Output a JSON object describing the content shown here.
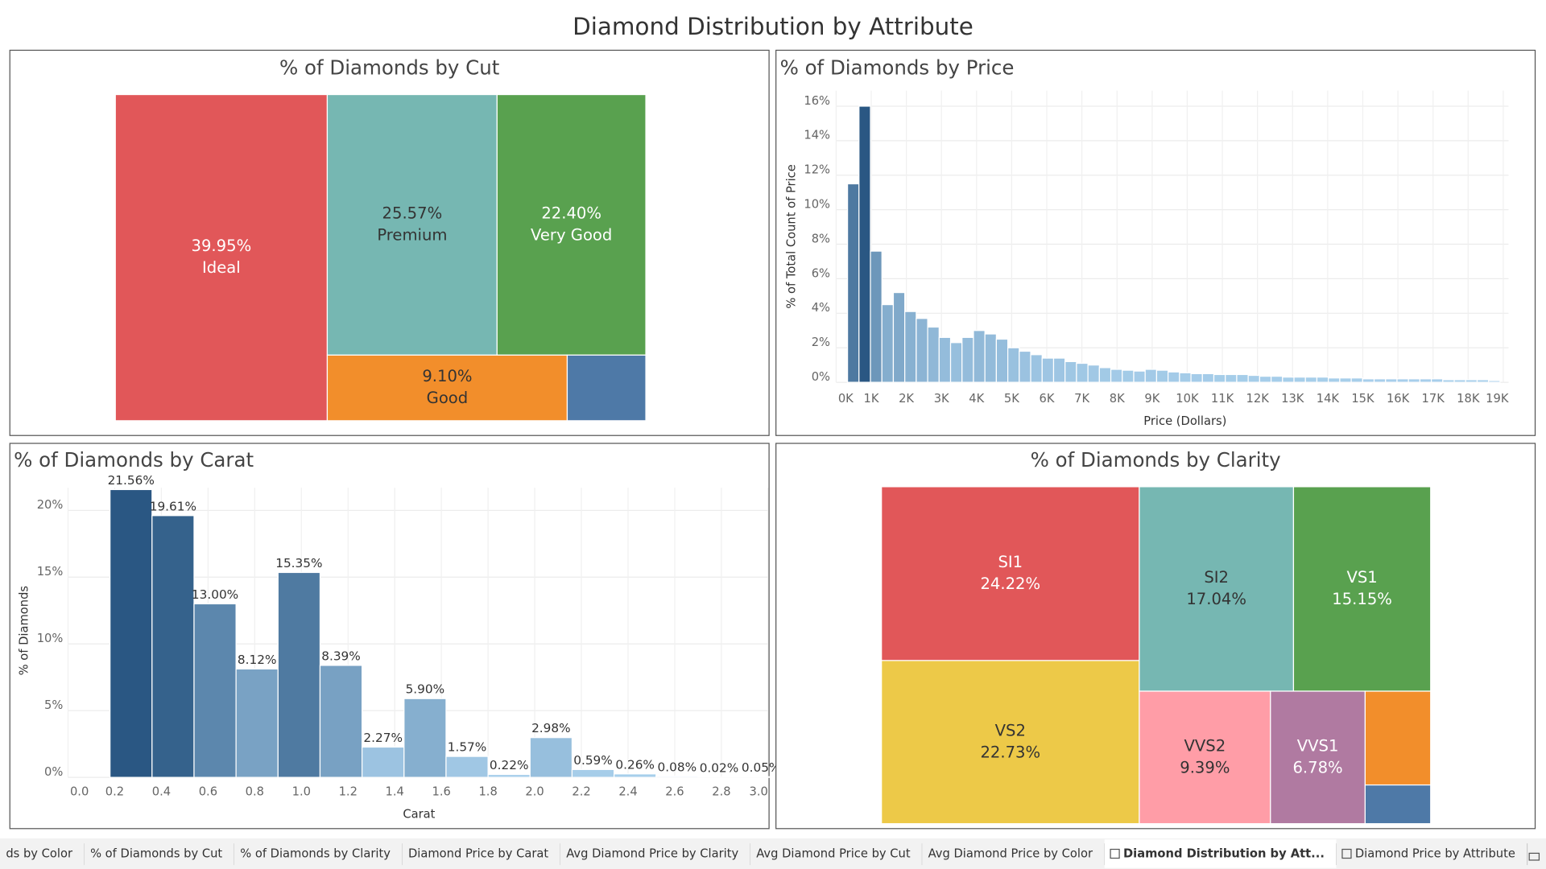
{
  "dashboard_title": "Diamond Distribution by Attribute",
  "tabs": [
    "ds by Color",
    "% of Diamonds by Cut",
    "% of Diamonds by Clarity",
    "Diamond Price by Carat",
    "Avg Diamond Price by Clarity",
    "Avg Diamond Price by Cut",
    "Avg Diamond Price by Color",
    "Diamond Distribution by Att...",
    "Diamond Price by Attribute"
  ],
  "active_tab": 7,
  "chart_data": [
    {
      "type": "treemap",
      "title": "% of Diamonds by Cut",
      "categories": [
        "Ideal",
        "Premium",
        "Very Good",
        "Good",
        null
      ],
      "values": [
        39.95,
        25.57,
        22.4,
        9.1,
        2.98
      ],
      "value_labels": [
        "39.95%",
        "25.57%",
        "22.40%",
        "9.10%",
        null
      ],
      "colors": [
        "#e15759",
        "#76b7b2",
        "#59a14f",
        "#f28e2b",
        "#4e79a7"
      ],
      "label_order": [
        "value",
        "category"
      ]
    },
    {
      "type": "histogram",
      "title": "% of Diamonds by Price",
      "x_label": "Price (Dollars)",
      "y_label": "% of Total Count of Price",
      "bins": [
        326,
        652,
        978,
        1304,
        1630,
        1956,
        2282,
        2608,
        2934,
        3260,
        3586,
        3912,
        4238,
        4564,
        4890,
        5216,
        5542,
        5868,
        6194,
        6520,
        6846,
        7172,
        7498,
        7824,
        8150,
        8476,
        8802,
        9128,
        9454,
        9780,
        10106,
        10432,
        10758,
        11084,
        11410,
        11736,
        12062,
        12388,
        12714,
        13040,
        13366,
        13692,
        14018,
        14344,
        14670,
        14996,
        15322,
        15648,
        15974,
        16300,
        16626,
        16952,
        17278,
        17604,
        17930,
        18256,
        18582,
        18908
      ],
      "values": [
        11.5,
        16.0,
        7.6,
        4.5,
        5.2,
        4.1,
        3.7,
        3.2,
        2.6,
        2.3,
        2.6,
        3.0,
        2.8,
        2.5,
        2.0,
        1.8,
        1.6,
        1.4,
        1.4,
        1.2,
        1.1,
        1.0,
        0.85,
        0.75,
        0.7,
        0.65,
        0.75,
        0.7,
        0.6,
        0.55,
        0.5,
        0.5,
        0.45,
        0.45,
        0.45,
        0.4,
        0.35,
        0.35,
        0.3,
        0.3,
        0.3,
        0.3,
        0.25,
        0.25,
        0.25,
        0.2,
        0.2,
        0.2,
        0.2,
        0.2,
        0.2,
        0.2,
        0.15,
        0.15,
        0.15,
        0.15,
        0.1
      ],
      "color_scale": [
        "#a9d0ec",
        "#2a5783"
      ],
      "xlim": [
        0,
        19150
      ],
      "ylim": [
        0,
        16.9
      ],
      "xticks": [
        {
          "value": 0,
          "label": "0K"
        },
        {
          "value": 1000,
          "label": "1K"
        },
        {
          "value": 2000,
          "label": "2K"
        },
        {
          "value": 3000,
          "label": "3K"
        },
        {
          "value": 4000,
          "label": "4K"
        },
        {
          "value": 5000,
          "label": "5K"
        },
        {
          "value": 6000,
          "label": "6K"
        },
        {
          "value": 7000,
          "label": "7K"
        },
        {
          "value": 8000,
          "label": "8K"
        },
        {
          "value": 9000,
          "label": "9K"
        },
        {
          "value": 10000,
          "label": "10K"
        },
        {
          "value": 11000,
          "label": "11K"
        },
        {
          "value": 12000,
          "label": "12K"
        },
        {
          "value": 13000,
          "label": "13K"
        },
        {
          "value": 14000,
          "label": "14K"
        },
        {
          "value": 15000,
          "label": "15K"
        },
        {
          "value": 16000,
          "label": "16K"
        },
        {
          "value": 17000,
          "label": "17K"
        },
        {
          "value": 18000,
          "label": "18K"
        },
        {
          "value": 19000,
          "label": "19K"
        }
      ],
      "yticks": [
        {
          "value": 0,
          "label": "0%"
        },
        {
          "value": 2,
          "label": "2%"
        },
        {
          "value": 4,
          "label": "4%"
        },
        {
          "value": 6,
          "label": "6%"
        },
        {
          "value": 8,
          "label": "8%"
        },
        {
          "value": 10,
          "label": "10%"
        },
        {
          "value": 12,
          "label": "12%"
        },
        {
          "value": 14,
          "label": "14%"
        },
        {
          "value": 16,
          "label": "16%"
        }
      ],
      "grid": true
    },
    {
      "type": "histogram",
      "title": "% of Diamonds by Carat",
      "x_label": "Carat",
      "y_label": "% of Diamonds",
      "bins": [
        0.18,
        0.36,
        0.54,
        0.72,
        0.9,
        1.08,
        1.26,
        1.44,
        1.62,
        1.8,
        1.98,
        2.16,
        2.34,
        2.52,
        2.7,
        2.88,
        3.06
      ],
      "values": [
        21.56,
        19.61,
        13.0,
        8.12,
        15.35,
        8.39,
        2.27,
        5.9,
        1.57,
        0.22,
        2.98,
        0.59,
        0.26,
        0.08,
        0.02,
        0.05
      ],
      "value_labels": [
        "21.56%",
        "19.61%",
        "13.00%",
        "8.12%",
        "15.35%",
        "8.39%",
        "2.27%",
        "5.90%",
        "1.57%",
        "0.22%",
        "2.98%",
        "0.59%",
        "0.26%",
        "0.08%",
        "0.02%",
        "0.05%"
      ],
      "color_scale": [
        "#a9d0ec",
        "#2a5783"
      ],
      "xlim": [
        0,
        3.0
      ],
      "ylim": [
        0,
        21.7
      ],
      "xticks": [
        {
          "value": 0,
          "label": "0.0"
        },
        0.2,
        0.4,
        0.6,
        0.8,
        {
          "value": 1,
          "label": "1.0"
        },
        1.2,
        1.4,
        1.6,
        1.8,
        {
          "value": 2,
          "label": "2.0"
        },
        2.2,
        2.4,
        2.6,
        2.8,
        {
          "value": 3,
          "label": "3.0"
        }
      ],
      "yticks": [
        {
          "value": 0,
          "label": "0%"
        },
        {
          "value": 5,
          "label": "5%"
        },
        {
          "value": 10,
          "label": "10%"
        },
        {
          "value": 15,
          "label": "15%"
        },
        {
          "value": 20,
          "label": "20%"
        }
      ],
      "grid": true
    },
    {
      "type": "treemap",
      "title": "% of Diamonds by Clarity",
      "categories": [
        "SI1",
        "VS2",
        "SI2",
        "VS1",
        "VVS2",
        "VVS1",
        null,
        null
      ],
      "values": [
        24.22,
        22.73,
        17.04,
        15.15,
        9.39,
        6.78,
        3.32,
        1.37
      ],
      "value_labels": [
        "24.22%",
        "22.73%",
        "17.04%",
        "15.15%",
        "9.39%",
        "6.78%",
        null,
        null
      ],
      "colors": [
        "#e15759",
        "#edc948",
        "#76b7b2",
        "#59a14f",
        "#ff9da7",
        "#b07aa1",
        "#f28e2b",
        "#4e79a7"
      ],
      "label_order": [
        "category",
        "value"
      ]
    }
  ]
}
